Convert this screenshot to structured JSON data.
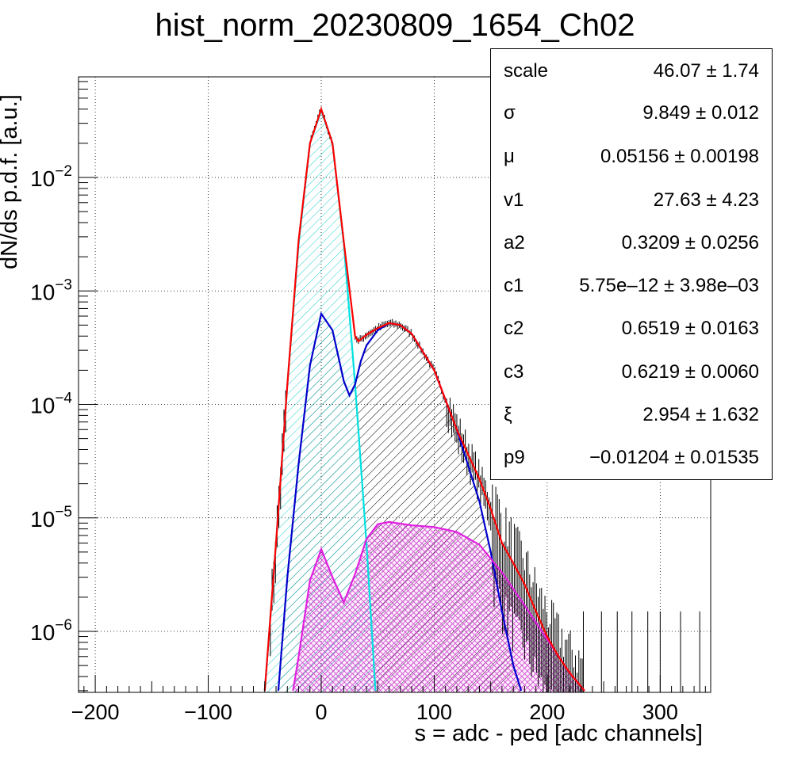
{
  "chart_data": {
    "type": "line",
    "title": "hist_norm_20230809_1654_Ch02",
    "xlabel": "s = adc - ped [adc channels]",
    "ylabel": "dN/ds p.d.f. [a.u.]",
    "xlim": [
      -215,
      343
    ],
    "ylim": [
      2.9e-07,
      0.075
    ],
    "yscale": "log",
    "grid": true,
    "x_ticks": [
      -200,
      -100,
      0,
      100,
      200,
      300
    ],
    "x_tick_labels": [
      "−200",
      "−100",
      "0",
      "100",
      "200",
      "300"
    ],
    "y_ticks": [
      {
        "value": 0.01,
        "mantissa": "10",
        "exp": "−2"
      },
      {
        "value": 0.001,
        "mantissa": "10",
        "exp": "−3"
      },
      {
        "value": 0.0001,
        "mantissa": "10",
        "exp": "−4"
      },
      {
        "value": 1e-05,
        "mantissa": "10",
        "exp": "−5"
      },
      {
        "value": 1e-06,
        "mantissa": "10",
        "exp": "−6"
      }
    ],
    "colors": {
      "data": "#000000",
      "total_fit": "#ff0000",
      "pedestal": "#00e0e0",
      "single": "#0000cc",
      "double": "#e020e0"
    },
    "series": [
      {
        "key": "pedestal",
        "x": [
          -50,
          -40,
          -30,
          -20,
          -10,
          0,
          10,
          20,
          30,
          40,
          48
        ],
        "y": [
          3e-07,
          6e-06,
          0.00015,
          0.0026,
          0.02,
          0.039,
          0.02,
          0.0026,
          0.00015,
          6e-06,
          3e-07
        ]
      },
      {
        "key": "single",
        "x": [
          -38,
          -30,
          -20,
          -10,
          0,
          10,
          20,
          25,
          30,
          35,
          40,
          50,
          60,
          70,
          80,
          100,
          120,
          140,
          150,
          160,
          170,
          177
        ],
        "y": [
          3e-07,
          3e-06,
          3e-05,
          0.00022,
          0.00063,
          0.00045,
          0.00016,
          0.00012,
          0.00015,
          0.00024,
          0.00033,
          0.00045,
          0.00052,
          0.0005,
          0.00042,
          0.0002,
          6e-05,
          1.4e-05,
          5e-06,
          1.5e-06,
          5e-07,
          3e-07
        ]
      },
      {
        "key": "double",
        "x": [
          -25,
          -20,
          -10,
          0,
          10,
          20,
          30,
          40,
          50,
          60,
          80,
          100,
          120,
          140,
          160,
          180,
          200,
          220,
          233
        ],
        "y": [
          3e-07,
          6e-07,
          2.8e-06,
          5.3e-06,
          3e-06,
          1.8e-06,
          3.2e-06,
          6.5e-06,
          8.8e-06,
          9.2e-06,
          8.6e-06,
          8.3e-06,
          7.5e-06,
          5.8e-06,
          3.3e-06,
          1.7e-06,
          8.5e-07,
          4.3e-07,
          3e-07
        ]
      },
      {
        "key": "total_fit",
        "x": [
          -50,
          -40,
          -30,
          -20,
          -10,
          0,
          10,
          20,
          30,
          33,
          40,
          50,
          60,
          70,
          80,
          100,
          120,
          140,
          150,
          160,
          170,
          180,
          190,
          200,
          210,
          220,
          233
        ],
        "y": [
          3e-07,
          6e-06,
          0.00015,
          0.0028,
          0.02,
          0.04,
          0.02,
          0.0027,
          0.0004,
          0.00036,
          0.00041,
          0.00047,
          0.00052,
          0.0005,
          0.00042,
          0.0002,
          6e-05,
          2.2e-05,
          1.2e-05,
          6e-06,
          4e-06,
          2.6e-06,
          1.5e-06,
          9e-07,
          6e-07,
          4.3e-07,
          3e-07
        ]
      }
    ],
    "stats": [
      {
        "name": "scale",
        "value": "46.07 ± 1.74"
      },
      {
        "name": "σ",
        "value": "9.849 ± 0.012"
      },
      {
        "name": "μ",
        "value": "0.05156 ± 0.00198"
      },
      {
        "name": "v1",
        "value": "27.63 ± 4.23"
      },
      {
        "name": "a2",
        "value": "0.3209 ± 0.0256"
      },
      {
        "name": "c1",
        "value": "5.75e–12 ± 3.98e–03"
      },
      {
        "name": "c2",
        "value": "0.6519 ± 0.0163"
      },
      {
        "name": "c3",
        "value": "0.6219 ± 0.0060"
      },
      {
        "name": "ξ",
        "value": "2.954 ± 1.632"
      },
      {
        "name": "p9",
        "value": "−0.01204 ± 0.01535"
      }
    ]
  }
}
